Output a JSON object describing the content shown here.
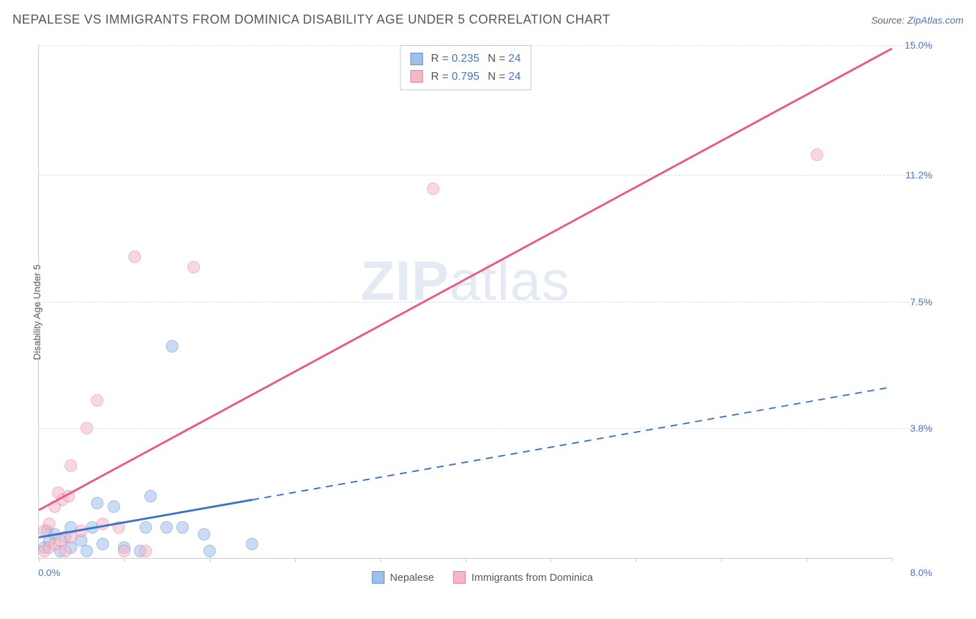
{
  "header": {
    "title": "NEPALESE VS IMMIGRANTS FROM DOMINICA DISABILITY AGE UNDER 5 CORRELATION CHART",
    "source_prefix": "Source: ",
    "source_link": "ZipAtlas.com"
  },
  "chart": {
    "type": "scatter",
    "y_axis_label": "Disability Age Under 5",
    "xlim": [
      0,
      8
    ],
    "ylim": [
      0,
      15
    ],
    "x_tick_labels": {
      "left": "0.0%",
      "right": "8.0%"
    },
    "y_gridlines": [
      {
        "value": 15.0,
        "label": "15.0%"
      },
      {
        "value": 11.2,
        "label": "11.2%"
      },
      {
        "value": 7.5,
        "label": "7.5%"
      },
      {
        "value": 3.8,
        "label": "3.8%"
      }
    ],
    "x_ticks": [
      0.0,
      0.8,
      1.6,
      2.4,
      3.2,
      4.0,
      4.8,
      5.6,
      6.4,
      7.2,
      8.0
    ],
    "background_color": "#ffffff",
    "grid_color": "#dddddd",
    "axis_color": "#c8c8c8",
    "label_color": "#555555",
    "value_color": "#4a72c4",
    "marker_radius": 9,
    "marker_opacity": 0.55,
    "series": [
      {
        "name": "Nepalese",
        "fill": "#9ec1ea",
        "stroke": "#5b8fd6",
        "line_color": "#3f73c4",
        "line_width": 3,
        "line_dash_after_x": 2.0,
        "trend": {
          "x1": 0.0,
          "y1": 0.6,
          "x2": 8.0,
          "y2": 5.0
        },
        "R": "0.235",
        "N": "24",
        "points": [
          {
            "x": 0.05,
            "y": 0.3
          },
          {
            "x": 0.08,
            "y": 0.8
          },
          {
            "x": 0.1,
            "y": 0.5
          },
          {
            "x": 0.15,
            "y": 0.7
          },
          {
            "x": 0.2,
            "y": 0.2
          },
          {
            "x": 0.25,
            "y": 0.6
          },
          {
            "x": 0.3,
            "y": 0.9
          },
          {
            "x": 0.3,
            "y": 0.3
          },
          {
            "x": 0.4,
            "y": 0.5
          },
          {
            "x": 0.45,
            "y": 0.2
          },
          {
            "x": 0.5,
            "y": 0.9
          },
          {
            "x": 0.55,
            "y": 1.6
          },
          {
            "x": 0.6,
            "y": 0.4
          },
          {
            "x": 0.7,
            "y": 1.5
          },
          {
            "x": 0.8,
            "y": 0.3
          },
          {
            "x": 0.95,
            "y": 0.2
          },
          {
            "x": 1.0,
            "y": 0.9
          },
          {
            "x": 1.05,
            "y": 1.8
          },
          {
            "x": 1.2,
            "y": 0.9
          },
          {
            "x": 1.25,
            "y": 6.2
          },
          {
            "x": 1.35,
            "y": 0.9
          },
          {
            "x": 1.55,
            "y": 0.7
          },
          {
            "x": 1.6,
            "y": 0.2
          },
          {
            "x": 2.0,
            "y": 0.4
          }
        ]
      },
      {
        "name": "Immigrants from Dominica",
        "fill": "#f4b8c8",
        "stroke": "#e77a9a",
        "line_color": "#e85a88",
        "line_width": 3,
        "line_dash_after_x": null,
        "trend": {
          "x1": 0.0,
          "y1": 1.4,
          "x2": 8.0,
          "y2": 14.9
        },
        "R": "0.795",
        "N": "24",
        "points": [
          {
            "x": 0.05,
            "y": 0.2
          },
          {
            "x": 0.05,
            "y": 0.8
          },
          {
            "x": 0.1,
            "y": 0.3
          },
          {
            "x": 0.1,
            "y": 1.0
          },
          {
            "x": 0.15,
            "y": 0.4
          },
          {
            "x": 0.15,
            "y": 1.5
          },
          {
            "x": 0.18,
            "y": 1.9
          },
          {
            "x": 0.2,
            "y": 0.5
          },
          {
            "x": 0.22,
            "y": 1.7
          },
          {
            "x": 0.25,
            "y": 0.2
          },
          {
            "x": 0.28,
            "y": 1.8
          },
          {
            "x": 0.3,
            "y": 0.6
          },
          {
            "x": 0.3,
            "y": 2.7
          },
          {
            "x": 0.4,
            "y": 0.8
          },
          {
            "x": 0.45,
            "y": 3.8
          },
          {
            "x": 0.55,
            "y": 4.6
          },
          {
            "x": 0.6,
            "y": 1.0
          },
          {
            "x": 0.75,
            "y": 0.9
          },
          {
            "x": 0.8,
            "y": 0.2
          },
          {
            "x": 0.9,
            "y": 8.8
          },
          {
            "x": 1.0,
            "y": 0.2
          },
          {
            "x": 1.45,
            "y": 8.5
          },
          {
            "x": 3.7,
            "y": 10.8
          },
          {
            "x": 7.3,
            "y": 11.8
          }
        ]
      }
    ],
    "watermark": {
      "bold": "ZIP",
      "rest": "atlas"
    },
    "legend_bottom": [
      {
        "swatch_fill": "#9ec1ea",
        "swatch_stroke": "#5b8fd6",
        "label": "Nepalese"
      },
      {
        "swatch_fill": "#f4b8c8",
        "swatch_stroke": "#e77a9a",
        "label": "Immigrants from Dominica"
      }
    ]
  }
}
